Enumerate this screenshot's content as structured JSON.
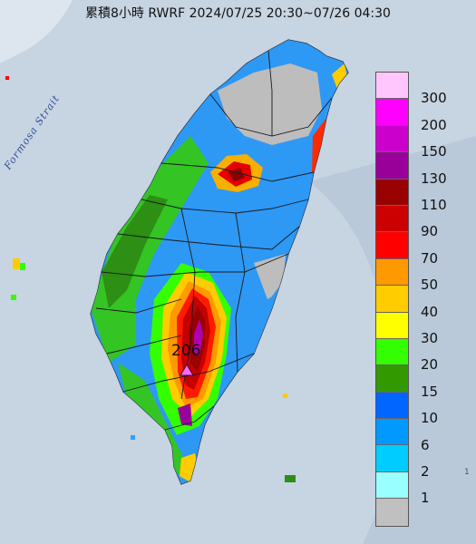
{
  "title": "累積8小時 RWRF 2024/07/25 20:30~07/26 04:30",
  "strait_label": "Formosa Strait",
  "max_value_label": "206",
  "edge_label": "1",
  "legend": [
    {
      "label": "300",
      "color": "#ffc6fe"
    },
    {
      "label": "200",
      "color": "#ff00ff"
    },
    {
      "label": "150",
      "color": "#cc00cc"
    },
    {
      "label": "130",
      "color": "#990099"
    },
    {
      "label": "110",
      "color": "#990000"
    },
    {
      "label": "90",
      "color": "#cc0000"
    },
    {
      "label": "70",
      "color": "#ff0000"
    },
    {
      "label": "50",
      "color": "#ff9900"
    },
    {
      "label": "40",
      "color": "#ffcc00"
    },
    {
      "label": "30",
      "color": "#ffff00"
    },
    {
      "label": "20",
      "color": "#33ff00"
    },
    {
      "label": "15",
      "color": "#339900"
    },
    {
      "label": "10",
      "color": "#0066ff"
    },
    {
      "label": "6",
      "color": "#0099ff"
    },
    {
      "label": "2",
      "color": "#00ccff"
    },
    {
      "label": "1",
      "color": "#99ffff"
    },
    {
      "label": "",
      "color": "#c0c0c0"
    }
  ]
}
